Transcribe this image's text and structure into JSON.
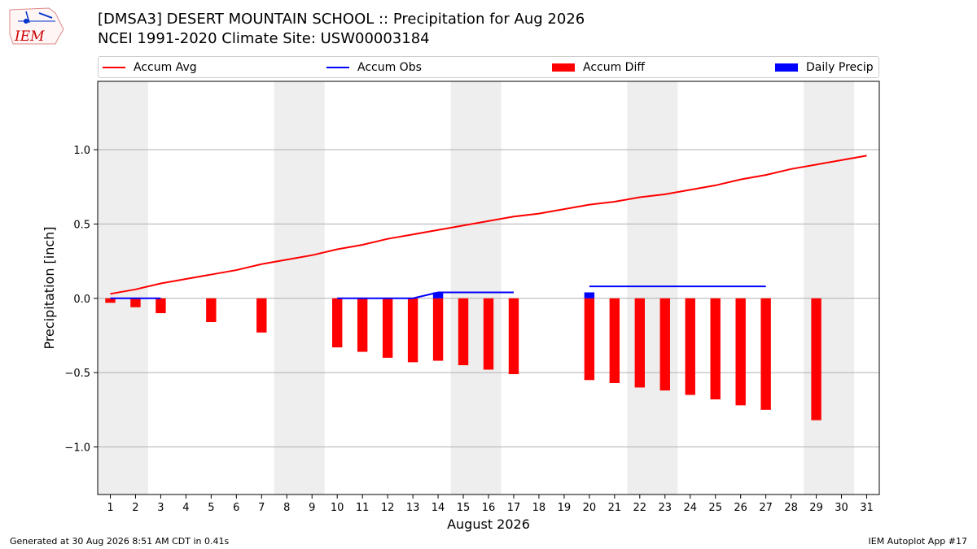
{
  "title_line1": "[DMSA3] DESERT MOUNTAIN SCHOOL :: Precipitation for Aug 2026",
  "title_line2": "NCEI 1991-2020 Climate Site: USW00003184",
  "logo_text": "IEM",
  "footer_left": "Generated at 30 Aug 2026 8:51 AM CDT in 0.41s",
  "footer_right": "IEM Autoplot App #17",
  "colors": {
    "avg": "#ff0000",
    "obs": "#0000ff",
    "diff": "#ff0000",
    "daily": "#0000ff",
    "weekend": "#eeeeee",
    "grid": "#b0b0b0"
  },
  "chart_data": {
    "type": "bar",
    "xlabel": "August 2026",
    "ylabel": "Precipitation [inch]",
    "xlim": [
      0.5,
      31.5
    ],
    "ylim": [
      -1.32,
      1.46
    ],
    "yticks": [
      -1.0,
      -0.5,
      0.0,
      0.5,
      1.0
    ],
    "ytick_labels": [
      "−1.0",
      "−0.5",
      "0.0",
      "0.5",
      "1.0"
    ],
    "xticks": [
      1,
      2,
      3,
      4,
      5,
      6,
      7,
      8,
      9,
      10,
      11,
      12,
      13,
      14,
      15,
      16,
      17,
      18,
      19,
      20,
      21,
      22,
      23,
      24,
      25,
      26,
      27,
      28,
      29,
      30,
      31
    ],
    "grid": "horizontal",
    "weekend_bands": [
      [
        0.5,
        2.5
      ],
      [
        7.5,
        9.5
      ],
      [
        14.5,
        16.5
      ],
      [
        21.5,
        23.5
      ],
      [
        28.5,
        30.5
      ]
    ],
    "legend": [
      {
        "name": "Accum Avg",
        "kind": "line",
        "color": "#ff0000"
      },
      {
        "name": "Accum Obs",
        "kind": "line",
        "color": "#0000ff"
      },
      {
        "name": "Accum Diff",
        "kind": "bar",
        "color": "#ff0000"
      },
      {
        "name": "Daily Precip",
        "kind": "bar",
        "color": "#0000ff"
      }
    ],
    "accum_avg": {
      "days": [
        1,
        2,
        3,
        4,
        5,
        6,
        7,
        8,
        9,
        10,
        11,
        12,
        13,
        14,
        15,
        16,
        17,
        18,
        19,
        20,
        21,
        22,
        23,
        24,
        25,
        26,
        27,
        28,
        29,
        30,
        31
      ],
      "values": [
        0.03,
        0.06,
        0.1,
        0.13,
        0.16,
        0.19,
        0.23,
        0.26,
        0.29,
        0.33,
        0.36,
        0.4,
        0.43,
        0.46,
        0.49,
        0.52,
        0.55,
        0.57,
        0.6,
        0.63,
        0.65,
        0.68,
        0.7,
        0.73,
        0.76,
        0.8,
        0.83,
        0.87,
        0.9,
        0.93,
        0.96
      ]
    },
    "accum_obs": [
      {
        "days": [
          1,
          2,
          3
        ],
        "values": [
          0.0,
          0.0,
          0.0
        ]
      },
      {
        "days": [
          10,
          11,
          12,
          13,
          14,
          15,
          16,
          17
        ],
        "values": [
          0.0,
          0.0,
          0.0,
          0.0,
          0.04,
          0.04,
          0.04,
          0.04
        ]
      },
      {
        "days": [
          20,
          21,
          22,
          23,
          24,
          25,
          26,
          27
        ],
        "values": [
          0.08,
          0.08,
          0.08,
          0.08,
          0.08,
          0.08,
          0.08,
          0.08
        ]
      }
    ],
    "accum_diff": {
      "days": [
        1,
        2,
        3,
        5,
        7,
        10,
        11,
        12,
        13,
        14,
        15,
        16,
        17,
        20,
        21,
        22,
        23,
        24,
        25,
        26,
        27,
        29
      ],
      "values": [
        -0.03,
        -0.06,
        -0.1,
        -0.16,
        -0.23,
        -0.33,
        -0.36,
        -0.4,
        -0.43,
        -0.42,
        -0.45,
        -0.48,
        -0.51,
        -0.55,
        -0.57,
        -0.6,
        -0.62,
        -0.65,
        -0.68,
        -0.72,
        -0.75,
        -0.82
      ]
    },
    "daily_precip": {
      "days": [
        14,
        20
      ],
      "values": [
        0.04,
        0.04
      ]
    }
  }
}
